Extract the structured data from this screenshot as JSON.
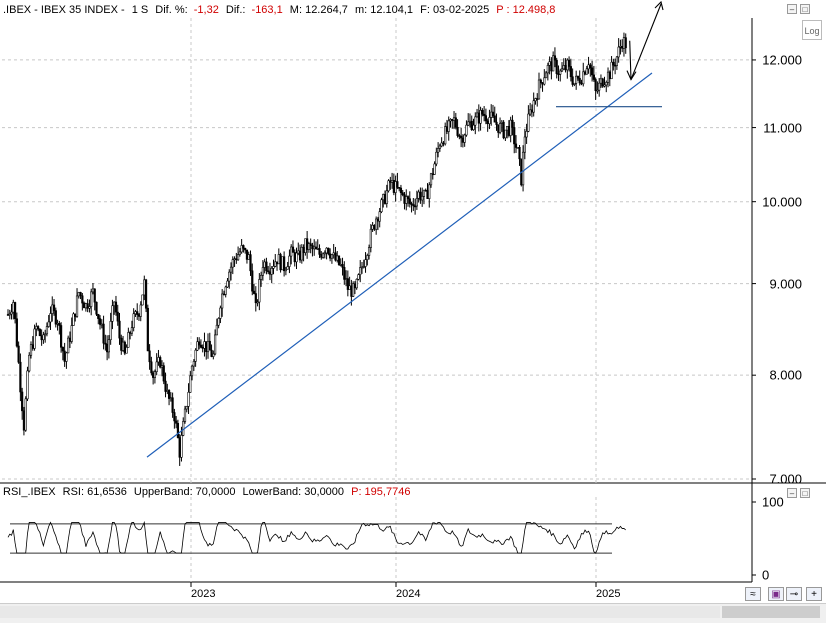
{
  "header": {
    "symbol": ".IBEX - IBEX 35 INDEX -",
    "period": "1 S",
    "dif_pct_label": "Dif. %:",
    "dif_pct_value": "-1,32",
    "dif_label": "Dif.:",
    "dif_value": "-163,1",
    "max": "M: 12.264,7",
    "min": "m: 12.104,1",
    "date": "F: 03-02-2025",
    "price_label": "P : 12.498,8"
  },
  "log_button": "Log",
  "rsi_header": {
    "name": "RSI_.IBEX",
    "rsi": "RSI: 61,6536",
    "upper": "UpperBand: 70,0000",
    "lower": "LowerBand: 30,0000",
    "price": "P: 195,7746"
  },
  "chart_data": [
    {
      "type": "candlestick",
      "title": ".IBEX - IBEX 35 INDEX - 1 S",
      "y_scale": "log",
      "ylim": [
        7000,
        12600
      ],
      "y_ticks": [
        "7.000",
        "8.000",
        "9.000",
        "10.000",
        "11.000",
        "12.000"
      ],
      "y_tick_values": [
        7000,
        8000,
        9000,
        10000,
        11000,
        12000
      ],
      "x_ticks": [
        "2023",
        "2024",
        "2025"
      ],
      "grid": true,
      "trend_points": [
        [
          0,
          8650
        ],
        [
          3,
          8800
        ],
        [
          7,
          7900
        ],
        [
          9,
          7500
        ],
        [
          12,
          8200
        ],
        [
          16,
          8500
        ],
        [
          20,
          8350
        ],
        [
          24,
          8700
        ],
        [
          28,
          8600
        ],
        [
          32,
          8150
        ],
        [
          36,
          8500
        ],
        [
          40,
          8900
        ],
        [
          44,
          8750
        ],
        [
          48,
          8900
        ],
        [
          52,
          8550
        ],
        [
          56,
          8250
        ],
        [
          60,
          8800
        ],
        [
          63,
          8400
        ],
        [
          66,
          8200
        ],
        [
          70,
          8550
        ],
        [
          74,
          8700
        ],
        [
          77,
          9000
        ],
        [
          79,
          8300
        ],
        [
          82,
          8000
        ],
        [
          86,
          8150
        ],
        [
          90,
          7800
        ],
        [
          94,
          7600
        ],
        [
          97,
          7250
        ],
        [
          100,
          7600
        ],
        [
          104,
          8100
        ],
        [
          108,
          8400
        ],
        [
          112,
          8300
        ],
        [
          116,
          8200
        ],
        [
          120,
          8800
        ],
        [
          124,
          9100
        ],
        [
          128,
          9300
        ],
        [
          132,
          9400
        ],
        [
          136,
          9300
        ],
        [
          140,
          8700
        ],
        [
          144,
          9250
        ],
        [
          148,
          9200
        ],
        [
          152,
          9300
        ],
        [
          156,
          9200
        ],
        [
          160,
          9350
        ],
        [
          164,
          9300
        ],
        [
          168,
          9450
        ],
        [
          172,
          9400
        ],
        [
          176,
          9350
        ],
        [
          180,
          9450
        ],
        [
          184,
          9300
        ],
        [
          188,
          9200
        ],
        [
          192,
          8950
        ],
        [
          196,
          8900
        ],
        [
          200,
          9200
        ],
        [
          204,
          9500
        ],
        [
          208,
          9800
        ],
        [
          212,
          10000
        ],
        [
          216,
          10250
        ],
        [
          220,
          10150
        ],
        [
          224,
          10050
        ],
        [
          228,
          9950
        ],
        [
          232,
          10100
        ],
        [
          236,
          10050
        ],
        [
          240,
          10400
        ],
        [
          244,
          10800
        ],
        [
          248,
          10950
        ],
        [
          252,
          11100
        ],
        [
          256,
          10850
        ],
        [
          260,
          11050
        ],
        [
          264,
          11100
        ],
        [
          268,
          11200
        ],
        [
          272,
          11150
        ],
        [
          276,
          11050
        ],
        [
          280,
          10950
        ],
        [
          284,
          11000
        ],
        [
          288,
          10650
        ],
        [
          290,
          10300
        ],
        [
          292,
          10900
        ],
        [
          296,
          11300
        ],
        [
          300,
          11600
        ],
        [
          304,
          11850
        ],
        [
          308,
          11950
        ],
        [
          312,
          11800
        ],
        [
          316,
          11900
        ],
        [
          320,
          11650
        ],
        [
          324,
          11750
        ],
        [
          328,
          12000
        ],
        [
          332,
          11500
        ],
        [
          336,
          11700
        ],
        [
          340,
          11800
        ],
        [
          344,
          12050
        ],
        [
          347,
          12300
        ],
        [
          349,
          12250
        ]
      ],
      "support_level": 11300,
      "trendline": {
        "from_date": "2022-10",
        "from": 7200,
        "to_date": "2025-02",
        "to": 11800
      },
      "projection": {
        "low": 11700,
        "target": "up",
        "label": ""
      }
    },
    {
      "type": "line",
      "title": "RSI_.IBEX",
      "ylim": [
        0,
        100
      ],
      "y_ticks": [
        "100",
        "0"
      ],
      "bands": {
        "upper": 70,
        "lower": 30
      },
      "last_value": 61.6536
    }
  ]
}
